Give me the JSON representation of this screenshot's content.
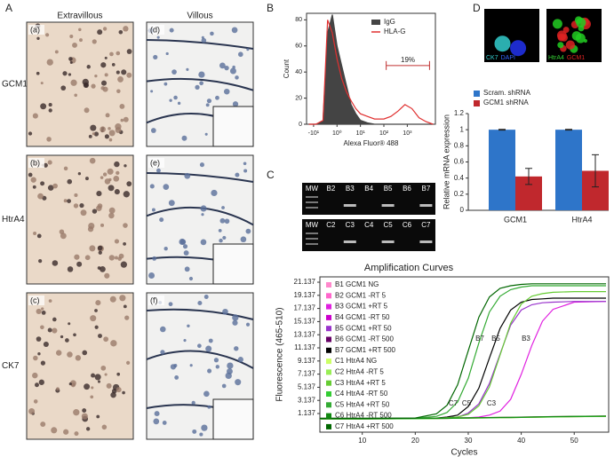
{
  "panel_a": {
    "letter": "A",
    "columns": [
      "Extravillous",
      "Villous"
    ],
    "rows": [
      "GCM1",
      "HtrA4",
      "CK7"
    ],
    "sublabels": [
      "(a)",
      "(b)",
      "(c)",
      "(d)",
      "(e)",
      "(f)"
    ]
  },
  "panel_c": {
    "letter": "C",
    "lanes_top": [
      "MW",
      "B2",
      "B3",
      "B4",
      "B5",
      "B6",
      "B7"
    ],
    "lanes_bottom": [
      "MW",
      "C2",
      "C3",
      "C4",
      "C5",
      "C6",
      "C7"
    ]
  },
  "panel_d": {
    "letter": "D",
    "images": [
      [
        {
          "text": "CK7",
          "color": "#33cccc"
        },
        {
          "text": "DAPI",
          "color": "#3366ff"
        }
      ],
      [
        {
          "text": "HtrA4",
          "color": "#33cc33"
        },
        {
          "text": "GCM1",
          "color": "#dd2222"
        }
      ]
    ]
  },
  "chart_data": [
    {
      "type": "line",
      "panel": "B",
      "y_label": "Count",
      "x_label": "Alexa Fluor® 488",
      "x": [
        -1.2,
        -0.9,
        -0.6,
        -0.4,
        -0.2,
        0,
        0.2,
        0.4,
        0.6,
        0.8,
        1.0,
        1.3,
        1.6,
        2.0,
        2.3,
        2.6,
        2.9,
        3.2,
        3.5,
        3.8,
        4.1
      ],
      "series": [
        {
          "name": "IgG",
          "color": "#444444",
          "style": "area",
          "values": [
            0,
            0,
            2,
            70,
            84,
            60,
            45,
            30,
            15,
            8,
            3,
            1,
            0,
            0,
            0,
            0,
            0,
            0,
            0,
            0,
            0
          ]
        },
        {
          "name": "HLA-G",
          "color": "#e03030",
          "style": "line",
          "values": [
            0,
            0,
            3,
            80,
            70,
            50,
            35,
            25,
            18,
            12,
            8,
            6,
            4,
            4,
            6,
            10,
            15,
            12,
            5,
            2,
            0
          ]
        }
      ],
      "xlim": [
        -1.3,
        4.2
      ],
      "xticks": [
        {
          "value": -1,
          "label": "-10¹"
        },
        {
          "value": 0,
          "label": "10⁰"
        },
        {
          "value": 1,
          "label": "10¹"
        },
        {
          "value": 2,
          "label": "10²"
        },
        {
          "value": 3,
          "label": "10³"
        }
      ],
      "ylim": [
        0,
        85
      ],
      "yticks": [
        0,
        20,
        40,
        60,
        80
      ],
      "gate": {
        "range": [
          2.1,
          3.95
        ],
        "level": 45,
        "label": "19%"
      }
    },
    {
      "type": "bar",
      "panel": "D",
      "y_label": "Relative mRNA expression",
      "categories": [
        "GCM1",
        "HtrA4"
      ],
      "series": [
        {
          "name": "Scram. shRNA",
          "color": "#2e75c9",
          "values": [
            1,
            1
          ],
          "errors": [
            0.005,
            0.005
          ]
        },
        {
          "name": "GCM1 shRNA",
          "color": "#c0282d",
          "values": [
            0.42,
            0.49
          ],
          "errors": [
            0.1,
            0.2
          ]
        }
      ],
      "ylim": [
        0,
        1.2
      ],
      "yticks": [
        0,
        0.2,
        0.4,
        0.6,
        0.8,
        1,
        1.2
      ]
    },
    {
      "type": "line",
      "title": "Amplification Curves",
      "y_label": "Fluorescence (465-510)",
      "x_label": "Cycles",
      "x": [
        2,
        10,
        20,
        24,
        26,
        28,
        30,
        32,
        34,
        36,
        38,
        40,
        42,
        44,
        46,
        50,
        56
      ],
      "series": [
        {
          "name": "B1 GCM1 NG",
          "color": "#ff88cc",
          "values": [
            0.3,
            0.3,
            0.35,
            0.38,
            0.4,
            0.42,
            0.44,
            0.46,
            0.48,
            0.5,
            0.52,
            0.55,
            0.57,
            0.6,
            0.62,
            0.66,
            0.7
          ]
        },
        {
          "name": "B2 GCM1 -RT 5",
          "color": "#ff66cc",
          "values": [
            0.35,
            0.35,
            0.4,
            0.43,
            0.45,
            0.47,
            0.49,
            0.51,
            0.53,
            0.55,
            0.57,
            0.6,
            0.62,
            0.65,
            0.67,
            0.71,
            0.75
          ]
        },
        {
          "name": "B3 GCM1 +RT 5",
          "color": "#e020e0",
          "values": [
            0.4,
            0.4,
            0.4,
            0.4,
            0.4,
            0.45,
            0.5,
            0.6,
            0.9,
            1.5,
            3.3,
            7.1,
            11.5,
            15.2,
            17.0,
            18.1,
            18.2
          ]
        },
        {
          "name": "B4 GCM1 -RT 50",
          "color": "#cc00cc",
          "values": [
            0.32,
            0.32,
            0.36,
            0.39,
            0.41,
            0.43,
            0.45,
            0.47,
            0.49,
            0.51,
            0.53,
            0.56,
            0.58,
            0.61,
            0.63,
            0.67,
            0.71
          ]
        },
        {
          "name": "B5 GCM1 +RT 50",
          "color": "#9933cc",
          "values": [
            0.4,
            0.4,
            0.4,
            0.42,
            0.5,
            0.6,
            1.2,
            2.6,
            5.7,
            10.2,
            14.6,
            16.9,
            17.7,
            18.0,
            18.1,
            18.2,
            18.2
          ]
        },
        {
          "name": "B6 GCM1 -RT 500",
          "color": "#660066",
          "values": [
            0.33,
            0.33,
            0.37,
            0.4,
            0.42,
            0.44,
            0.46,
            0.48,
            0.5,
            0.52,
            0.54,
            0.57,
            0.59,
            0.62,
            0.64,
            0.68,
            0.72
          ]
        },
        {
          "name": "B7 GCM1 +RT 500",
          "color": "#000000",
          "values": [
            0.4,
            0.4,
            0.4,
            0.45,
            0.6,
            0.9,
            2.2,
            5.0,
            9.6,
            14.1,
            16.9,
            18.1,
            18.5,
            18.6,
            18.7,
            18.7,
            18.7
          ]
        },
        {
          "name": "C1 HtrA4 NG",
          "color": "#ccff66",
          "values": [
            0.3,
            0.3,
            0.34,
            0.37,
            0.39,
            0.41,
            0.43,
            0.45,
            0.47,
            0.49,
            0.51,
            0.54,
            0.56,
            0.59,
            0.61,
            0.65,
            0.69
          ]
        },
        {
          "name": "C2 HtrA4 -RT 5",
          "color": "#99ee55",
          "values": [
            0.34,
            0.34,
            0.38,
            0.41,
            0.43,
            0.45,
            0.47,
            0.49,
            0.51,
            0.53,
            0.55,
            0.58,
            0.6,
            0.63,
            0.65,
            0.69,
            0.73
          ]
        },
        {
          "name": "C3 HtrA4 +RT 5",
          "color": "#66cc33",
          "values": [
            0.4,
            0.4,
            0.4,
            0.42,
            0.5,
            0.6,
            1.0,
            2.3,
            5.2,
            10.05,
            14.9,
            17.8,
            19.0,
            19.4,
            19.6,
            19.7,
            19.7
          ]
        },
        {
          "name": "C4 HtrA4 -RT 50",
          "color": "#33cc33",
          "values": [
            0.31,
            0.31,
            0.35,
            0.38,
            0.4,
            0.42,
            0.44,
            0.46,
            0.48,
            0.5,
            0.52,
            0.55,
            0.57,
            0.6,
            0.62,
            0.66,
            0.7
          ]
        },
        {
          "name": "C5 HtrA4 +RT 50",
          "color": "#33aa33",
          "values": [
            0.4,
            0.4,
            0.42,
            0.7,
            1.3,
            2.9,
            6.5,
            11.9,
            16.6,
            19.0,
            20.0,
            20.4,
            20.6,
            20.6,
            20.6,
            20.6,
            20.6
          ]
        },
        {
          "name": "C6 HtrA4 -RT 500",
          "color": "#118811",
          "values": [
            0.36,
            0.36,
            0.4,
            0.42,
            0.44,
            0.46,
            0.48,
            0.5,
            0.52,
            0.54,
            0.56,
            0.59,
            0.61,
            0.64,
            0.66,
            0.7,
            0.74
          ]
        },
        {
          "name": "C7 HtrA4 +RT 500",
          "color": "#006600",
          "values": [
            0.4,
            0.4,
            0.45,
            1.1,
            2.4,
            5.5,
            10.7,
            15.8,
            18.9,
            20.2,
            20.6,
            20.8,
            20.9,
            20.9,
            20.9,
            20.9,
            20.9
          ]
        }
      ],
      "xlim": [
        2,
        56.5
      ],
      "xticks": [
        10,
        20,
        30,
        40,
        50
      ],
      "ylim": [
        -1.7,
        21.95
      ],
      "yticks": [
        1.137,
        3.137,
        5.137,
        7.137,
        9.137,
        11.137,
        13.137,
        15.137,
        17.137,
        19.137,
        21.137
      ],
      "annotations": [
        "C7",
        "C5",
        "C3",
        "B7",
        "B5",
        "B3"
      ]
    }
  ]
}
